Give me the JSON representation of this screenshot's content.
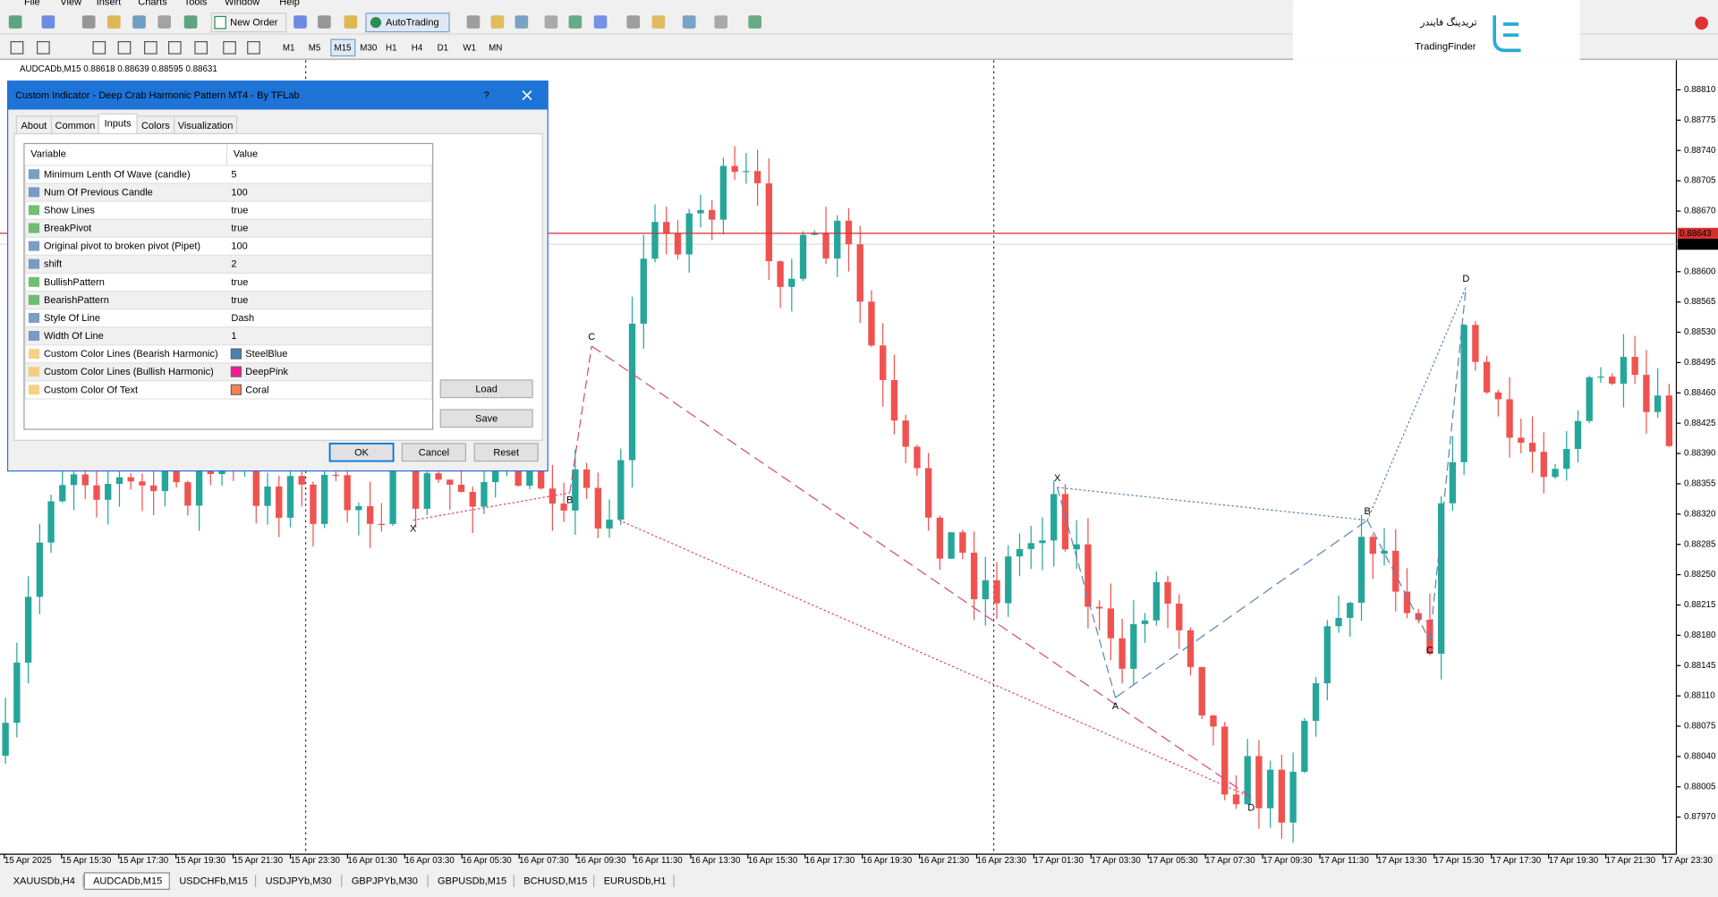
{
  "menu": [
    "File",
    "View",
    "Insert",
    "Charts",
    "Tools",
    "Window",
    "Help"
  ],
  "toolbar": {
    "new_order": "New Order",
    "auto_trading": "AutoTrading",
    "timeframes": [
      "M1",
      "M5",
      "M15",
      "M30",
      "H1",
      "H4",
      "D1",
      "W1",
      "MN"
    ]
  },
  "logo": {
    "latin": "TradingFinder",
    "persian": "تریدینگ فایندر"
  },
  "chart": {
    "header": "AUDCADb,M15  0.88618 0.88639 0.88595 0.88631",
    "price_labels": [
      "0.88810",
      "0.88775",
      "0.88740",
      "0.88705",
      "0.88670",
      "0.88600",
      "0.88565",
      "0.88530",
      "0.88495",
      "0.88460",
      "0.88425",
      "0.88390",
      "0.88355",
      "0.88320",
      "0.88285",
      "0.88250",
      "0.88215",
      "0.88180",
      "0.88145",
      "0.88110",
      "0.88075",
      "0.88040",
      "0.88005",
      "0.87970"
    ],
    "current_price": "0.88643",
    "ask_price": "0.88631",
    "time_labels": [
      "15 Apr 2025",
      "15 Apr 15:30",
      "15 Apr 17:30",
      "15 Apr 19:30",
      "15 Apr 21:30",
      "15 Apr 23:30",
      "16 Apr 01:30",
      "16 Apr 03:30",
      "16 Apr 05:30",
      "16 Apr 07:30",
      "16 Apr 09:30",
      "16 Apr 11:30",
      "16 Apr 13:30",
      "16 Apr 15:30",
      "16 Apr 17:30",
      "16 Apr 19:30",
      "16 Apr 21:30",
      "16 Apr 23:30",
      "17 Apr 01:30",
      "17 Apr 03:30",
      "17 Apr 05:30",
      "17 Apr 07:30",
      "17 Apr 09:30",
      "17 Apr 11:30",
      "17 Apr 13:30",
      "17 Apr 15:30",
      "17 Apr 17:30",
      "17 Apr 19:30",
      "17 Apr 21:30",
      "17 Apr 23:30"
    ],
    "bearish_labels": [
      "X",
      "B",
      "C",
      "D"
    ],
    "bullish_labels": [
      "X",
      "A",
      "B",
      "C",
      "D"
    ]
  },
  "dialog": {
    "title": "Custom Indicator - Deep Crab Harmonic Pattern MT4 - By TFLab",
    "help": "?",
    "tabs": [
      "About",
      "Common",
      "Inputs",
      "Colors",
      "Visualization"
    ],
    "table": {
      "headers": [
        "Variable",
        "Value"
      ],
      "rows": [
        [
          "Minimum Lenth Of Wave (candle)",
          "5"
        ],
        [
          "Num Of Previous Candle",
          "100"
        ],
        [
          "Show Lines",
          "true"
        ],
        [
          "BreakPivot",
          "true"
        ],
        [
          "Original pivot to broken pivot (Pipet)",
          "100"
        ],
        [
          "shift",
          "2"
        ],
        [
          "BullishPattern",
          "true"
        ],
        [
          "BearishPattern",
          "true"
        ],
        [
          "Style Of Line",
          "Dash"
        ],
        [
          "Width Of Line",
          "1"
        ],
        [
          "Custom Color Lines (Bearish Harmonic)",
          "SteelBlue"
        ],
        [
          "Custom Color Lines (Bullish Harmonic)",
          "DeepPink"
        ],
        [
          "Custom Color Of Text",
          "Coral"
        ]
      ]
    },
    "side_buttons": [
      "Load",
      "Save"
    ],
    "buttons": [
      "OK",
      "Cancel",
      "Reset"
    ]
  },
  "symbol_tabs": [
    "XAUUSDb,H4",
    "AUDCADb,M15",
    "USDCHFb,M15",
    "USDJPYb,M30",
    "GBPJPYb,M30",
    "GBPUSDb,M15",
    "BCHUSD,M15",
    "EURUSDb,H1"
  ]
}
